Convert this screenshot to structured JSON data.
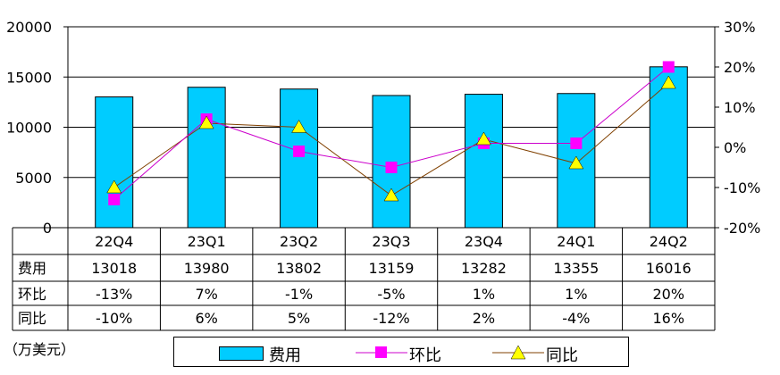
{
  "chart_data": {
    "type": "bar",
    "categories": [
      "22Q4",
      "23Q1",
      "23Q2",
      "23Q3",
      "23Q4",
      "24Q1",
      "24Q2"
    ],
    "series": [
      {
        "name": "费用",
        "type": "bar",
        "axis": "left",
        "values": [
          13018,
          13980,
          13802,
          13159,
          13282,
          13355,
          16016
        ]
      },
      {
        "name": "环比",
        "type": "line",
        "axis": "right",
        "values": [
          -13,
          7,
          -1,
          -5,
          1,
          1,
          20
        ]
      },
      {
        "name": "同比",
        "type": "line",
        "axis": "right",
        "values": [
          -10,
          6,
          5,
          -12,
          2,
          -4,
          16
        ]
      }
    ],
    "y_left_ticks": [
      "20000",
      "15000",
      "10000",
      "5000",
      "0"
    ],
    "y_right_ticks": [
      "30%",
      "20%",
      "10%",
      "0%",
      "-10%",
      "-20%"
    ],
    "ylim_left": [
      0,
      20000
    ],
    "ylim_right": [
      -20,
      30
    ],
    "table": {
      "row_labels": [
        "费用",
        "环比",
        "同比"
      ],
      "rows": [
        [
          "13018",
          "13980",
          "13802",
          "13159",
          "13282",
          "13355",
          "16016"
        ],
        [
          "-13%",
          "7%",
          "-1%",
          "-5%",
          "1%",
          "1%",
          "20%"
        ],
        [
          "-10%",
          "6%",
          "5%",
          "-12%",
          "2%",
          "-4%",
          "16%"
        ]
      ]
    },
    "unit_note": "（万美元）",
    "legend": [
      "费用",
      "环比",
      "同比"
    ],
    "colors": {
      "bar": "#00CCFF",
      "mom": "#FF00FF",
      "yoy": "#FFFF00",
      "yoy_line": "#804000",
      "mom_line": "#CC00CC"
    }
  }
}
